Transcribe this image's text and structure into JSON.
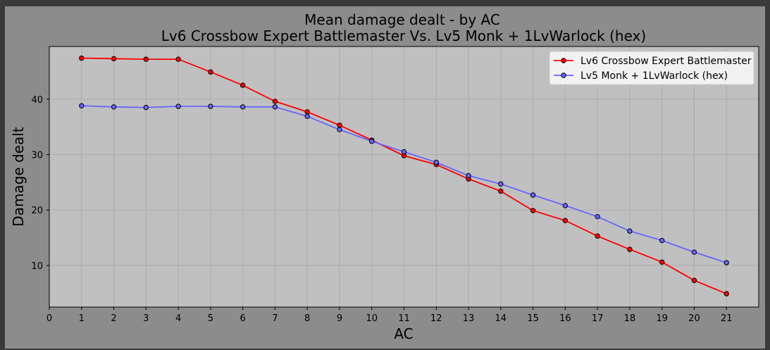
{
  "chart_data": {
    "type": "line",
    "title": "Mean damage dealt - by AC",
    "subtitle": "Lv6 Crossbow Expert Battlemaster Vs. Lv5 Monk + 1LvWarlock (hex)",
    "xlabel": "AC",
    "ylabel": "Damage dealt",
    "xlim": [
      0,
      22
    ],
    "ylim": [
      2.5,
      49.5
    ],
    "x_ticks": [
      0,
      1,
      2,
      3,
      4,
      5,
      6,
      7,
      8,
      9,
      10,
      11,
      12,
      13,
      14,
      15,
      16,
      17,
      18,
      19,
      20,
      21
    ],
    "y_ticks": [
      10,
      20,
      30,
      40
    ],
    "grid": true,
    "legend_position": "top-right",
    "x": [
      1,
      2,
      3,
      4,
      5,
      6,
      7,
      8,
      9,
      10,
      11,
      12,
      13,
      14,
      15,
      16,
      17,
      18,
      19,
      20,
      21
    ],
    "series": [
      {
        "name": "Lv6 Crossbow Expert Battlemaster",
        "color": "#ff0000",
        "values": [
          47.4,
          47.3,
          47.2,
          47.2,
          44.9,
          42.5,
          39.6,
          37.7,
          35.3,
          32.6,
          29.8,
          28.2,
          25.6,
          23.4,
          19.9,
          18.1,
          15.3,
          12.9,
          10.6,
          7.3,
          4.9
        ]
      },
      {
        "name": "Lv5 Monk + 1LvWarlock (hex)",
        "color": "#6666ff",
        "values": [
          38.8,
          38.6,
          38.5,
          38.7,
          38.7,
          38.6,
          38.6,
          36.9,
          34.5,
          32.4,
          30.5,
          28.6,
          26.2,
          24.7,
          22.7,
          20.8,
          18.8,
          16.2,
          14.5,
          12.4,
          10.5
        ]
      }
    ]
  }
}
